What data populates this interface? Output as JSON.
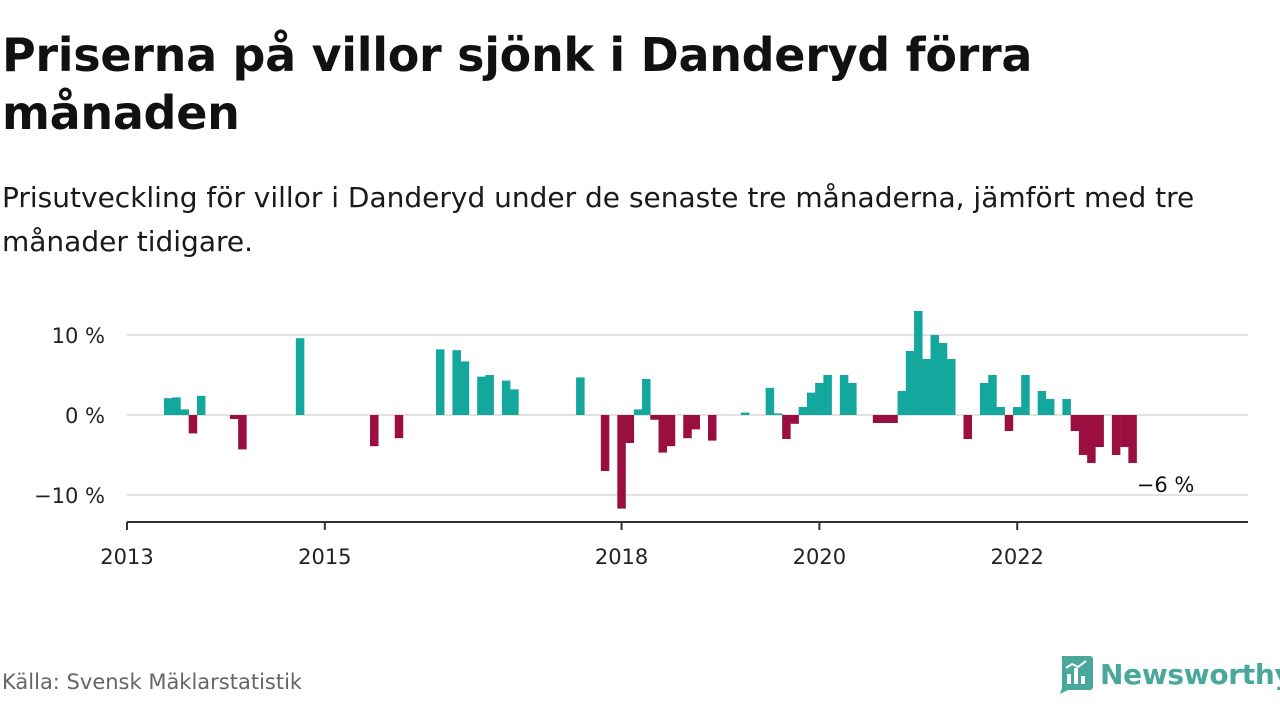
{
  "title": "Priserna på villor sjönk i Danderyd förra månaden",
  "subtitle": "Prisutveckling för villor i Danderyd under de senaste tre månaderna, jämfört med tre månader tidigare.",
  "source": "Källa: Svensk Mäklarstatistik",
  "brand": {
    "name": "Newsworthy",
    "color": "#4aa79b",
    "icon": "newsworthy-logo-icon"
  },
  "colors": {
    "positive": "#14a79d",
    "negative": "#9a0e40",
    "grid": "#d9d9d9",
    "axis": "#333333"
  },
  "chart_data": {
    "type": "bar",
    "title": "Priserna på villor sjönk i Danderyd förra månaden",
    "xlabel": "",
    "ylabel": "",
    "x_ticks": [
      "2013",
      "2015",
      "2018",
      "2020",
      "2022"
    ],
    "x_tick_years": [
      2013,
      2015,
      2018,
      2020,
      2022
    ],
    "y_ticks": [
      {
        "value": 10,
        "label": "10 %"
      },
      {
        "value": 0,
        "label": "0 %"
      },
      {
        "value": -10,
        "label": "−10 %"
      }
    ],
    "ylim": [
      -13.5,
      13.5
    ],
    "xlim": [
      "2013-01",
      "2024-05"
    ],
    "grid": "horizontal",
    "annotation": {
      "text": "−6 %",
      "month": "2023-07"
    },
    "series": [
      {
        "values": [
          {
            "month": "2013-06",
            "value": 2.1
          },
          {
            "month": "2013-07",
            "value": 2.2
          },
          {
            "month": "2013-08",
            "value": 0.7
          },
          {
            "month": "2013-09",
            "value": -2.3
          },
          {
            "month": "2013-10",
            "value": 2.4
          },
          {
            "month": "2014-02",
            "value": -0.5
          },
          {
            "month": "2014-03",
            "value": -4.3
          },
          {
            "month": "2014-10",
            "value": 9.6
          },
          {
            "month": "2015-07",
            "value": -3.9
          },
          {
            "month": "2015-10",
            "value": -2.9
          },
          {
            "month": "2016-03",
            "value": 8.2
          },
          {
            "month": "2016-05",
            "value": 8.1
          },
          {
            "month": "2016-06",
            "value": 6.7
          },
          {
            "month": "2016-08",
            "value": 4.8
          },
          {
            "month": "2016-09",
            "value": 5.0
          },
          {
            "month": "2016-11",
            "value": 4.3
          },
          {
            "month": "2016-12",
            "value": 3.2
          },
          {
            "month": "2017-08",
            "value": 4.7
          },
          {
            "month": "2017-11",
            "value": -7.0
          },
          {
            "month": "2018-01",
            "value": -11.7
          },
          {
            "month": "2018-02",
            "value": -3.5
          },
          {
            "month": "2018-03",
            "value": 0.7
          },
          {
            "month": "2018-04",
            "value": 4.5
          },
          {
            "month": "2018-05",
            "value": -0.6
          },
          {
            "month": "2018-06",
            "value": -4.7
          },
          {
            "month": "2018-07",
            "value": -3.9
          },
          {
            "month": "2018-09",
            "value": -2.9
          },
          {
            "month": "2018-10",
            "value": -1.8
          },
          {
            "month": "2018-12",
            "value": -3.2
          },
          {
            "month": "2019-04",
            "value": 0.3
          },
          {
            "month": "2019-07",
            "value": 3.4
          },
          {
            "month": "2019-08",
            "value": 0.2
          },
          {
            "month": "2019-09",
            "value": -3.0
          },
          {
            "month": "2019-10",
            "value": -1.1
          },
          {
            "month": "2019-11",
            "value": 1.0
          },
          {
            "month": "2019-12",
            "value": 2.8
          },
          {
            "month": "2020-01",
            "value": 4.0
          },
          {
            "month": "2020-02",
            "value": 5.0
          },
          {
            "month": "2020-04",
            "value": 5.0
          },
          {
            "month": "2020-05",
            "value": 4.0
          },
          {
            "month": "2020-08",
            "value": -1.0
          },
          {
            "month": "2020-09",
            "value": -1.0
          },
          {
            "month": "2020-10",
            "value": -1.0
          },
          {
            "month": "2020-11",
            "value": 3.0
          },
          {
            "month": "2020-12",
            "value": 8.0
          },
          {
            "month": "2021-01",
            "value": 13.0
          },
          {
            "month": "2021-02",
            "value": 7.0
          },
          {
            "month": "2021-03",
            "value": 10.0
          },
          {
            "month": "2021-04",
            "value": 9.0
          },
          {
            "month": "2021-05",
            "value": 7.0
          },
          {
            "month": "2021-07",
            "value": -3.0
          },
          {
            "month": "2021-09",
            "value": 4.0
          },
          {
            "month": "2021-10",
            "value": 5.0
          },
          {
            "month": "2021-11",
            "value": 1.0
          },
          {
            "month": "2021-12",
            "value": -2.0
          },
          {
            "month": "2022-01",
            "value": 1.0
          },
          {
            "month": "2022-02",
            "value": 5.0
          },
          {
            "month": "2022-04",
            "value": 3.0
          },
          {
            "month": "2022-05",
            "value": 2.0
          },
          {
            "month": "2022-07",
            "value": 2.0
          },
          {
            "month": "2022-08",
            "value": -2.0
          },
          {
            "month": "2022-09",
            "value": -5.0
          },
          {
            "month": "2022-10",
            "value": -6.0
          },
          {
            "month": "2022-11",
            "value": -4.0
          },
          {
            "month": "2023-01",
            "value": -5.0
          },
          {
            "month": "2023-02",
            "value": -4.0
          },
          {
            "month": "2023-03",
            "value": -6.0
          }
        ]
      }
    ]
  }
}
